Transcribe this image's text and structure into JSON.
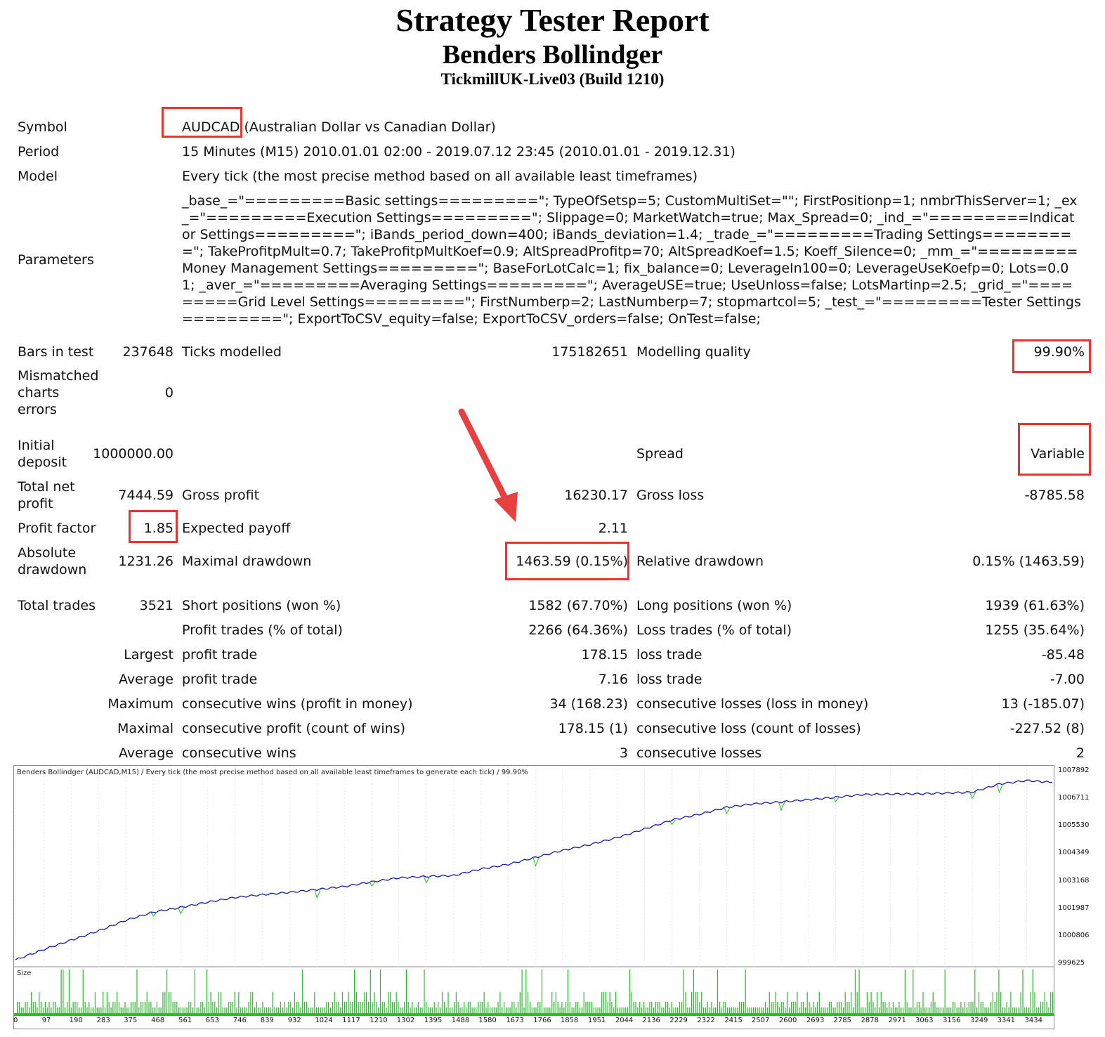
{
  "header": {
    "title": "Strategy Tester Report",
    "expert": "Benders Bollindger",
    "server": "TickmillUK-Live03 (Build 1210)"
  },
  "info": {
    "symbol_label": "Symbol",
    "symbol_code": "AUDCAD",
    "symbol_desc": " (Australian Dollar vs Canadian Dollar)",
    "period_label": "Period",
    "period_value": "15 Minutes (M15) 2010.01.01 02:00 - 2019.07.12 23:45 (2010.01.01 - 2019.12.31)",
    "model_label": "Model",
    "model_value": "Every tick (the most precise method based on all available least timeframes)",
    "parameters_label": "Parameters",
    "parameters_value": "_base_=\"=========Basic settings=========\"; TypeOfSetsp=5; CustomMultiSet=\"\"; FirstPositionp=1; nmbrThisServer=1; _ex_=\"=========Execution Settings=========\"; Slippage=0; MarketWatch=true; Max_Spread=0; _ind_=\"=========Indicator Settings=========\"; iBands_period_down=400; iBands_deviation=1.4; _trade_=\"=========Trading Settings=========\"; TakeProfitpMult=0.7; TakeProfitpMultKoef=0.9; AltSpreadProfitp=70; AltSpreadKoef=1.5; Koeff_Silence=0; _mm_=\"=========Money Management Settings=========\"; BaseForLotCalc=1; fix_balance=0; LeverageIn100=0; LeverageUseKoefp=0; Lots=0.01; _aver_=\"=========Averaging Settings=========\"; AverageUSE=true; UseUnloss=false; LotsMartinp=2.5; _grid_=\"=========Grid Level Settings=========\"; FirstNumberp=2; LastNumberp=7; stopmartcol=5; _test_=\"=========Tester Settings=========\"; ExportToCSV_equity=false; ExportToCSV_orders=false; OnTest=false;"
  },
  "stats": {
    "bars_label": "Bars in test",
    "bars_value": "237648",
    "ticks_label": "Ticks modelled",
    "ticks_value": "175182651",
    "quality_label": "Modelling quality",
    "quality_value": "99.90%",
    "mismatch_label_1": "Mismatched",
    "mismatch_label_2": "charts",
    "mismatch_label_3": "errors",
    "mismatch_value": "0",
    "deposit_label_1": "Initial",
    "deposit_label_2": "deposit",
    "deposit_value": "1000000.00",
    "spread_label": "Spread",
    "spread_value": "Variable",
    "netprofit_label_1": "Total net",
    "netprofit_label_2": "profit",
    "netprofit_value": "7444.59",
    "grossprofit_label": "Gross profit",
    "grossprofit_value": "16230.17",
    "grossloss_label": "Gross loss",
    "grossloss_value": "-8785.58",
    "pf_label": "Profit factor",
    "pf_value": "1.85",
    "payoff_label": "Expected payoff",
    "payoff_value": "2.11",
    "absdd_label_1": "Absolute",
    "absdd_label_2": "drawdown",
    "absdd_value": "1231.26",
    "maxdd_label": "Maximal drawdown",
    "maxdd_value": "1463.59 (0.15%)",
    "reldd_label": "Relative drawdown",
    "reldd_value": "0.15% (1463.59)",
    "trades_label": "Total trades",
    "trades_value": "3521",
    "short_label": "Short positions (won %)",
    "short_value": "1582 (67.70%)",
    "long_label": "Long positions (won %)",
    "long_value": "1939 (61.63%)",
    "ptrades_label": "Profit trades (% of total)",
    "ptrades_value": "2266 (64.36%)",
    "ltrades_label": "Loss trades (% of total)",
    "ltrades_value": "1255 (35.64%)",
    "largest_label": "Largest",
    "largest_p_label": "profit trade",
    "largest_p_value": "178.15",
    "largest_l_label": "loss trade",
    "largest_l_value": "-85.48",
    "average_label": "Average",
    "average_p_label": "profit trade",
    "average_p_value": "7.16",
    "average_l_label": "loss trade",
    "average_l_value": "-7.00",
    "maximum_label": "Maximum",
    "maximum_w_label": "consecutive wins (profit in money)",
    "maximum_w_value": "34 (168.23)",
    "maximum_l_label": "consecutive losses (loss in money)",
    "maximum_l_value": "13 (-185.07)",
    "maximal_label": "Maximal",
    "maximal_p_label": "consecutive profit (count of wins)",
    "maximal_p_value": "178.15 (1)",
    "maximal_l_label": "consecutive loss (count of losses)",
    "maximal_l_value": "-227.52 (8)",
    "avgc_label": "Average",
    "avgc_w_label": "consecutive wins",
    "avgc_w_value": "3",
    "avgc_l_label": "consecutive losses",
    "avgc_l_value": "2"
  },
  "chart_data": {
    "type": "line",
    "title": "Benders Bollindger (AUDCAD,M15) / Every tick (the most precise method based on all available least timeframes to generate each tick) / 99.90%",
    "size_label": "Size",
    "y_ticks": [
      "1007892",
      "1006711",
      "1005530",
      "1004349",
      "1003168",
      "1001987",
      "1000806",
      "999625"
    ],
    "ylim": [
      999625,
      1007892
    ],
    "x_ticks": [
      "0",
      "97",
      "190",
      "283",
      "375",
      "468",
      "561",
      "653",
      "746",
      "839",
      "932",
      "1024",
      "1117",
      "1210",
      "1302",
      "1395",
      "1488",
      "1580",
      "1673",
      "1766",
      "1858",
      "1951",
      "2044",
      "2136",
      "2229",
      "2322",
      "2415",
      "2507",
      "2600",
      "2693",
      "2785",
      "2878",
      "2971",
      "3063",
      "3156",
      "3249",
      "3341",
      "3434"
    ],
    "xlim": [
      0,
      3521
    ],
    "series": [
      {
        "name": "",
        "color": "#1a1aa0",
        "x": [
          0,
          97,
          190,
          283,
          375,
          468,
          561,
          653,
          746,
          839,
          932,
          1024,
          1117,
          1210,
          1302,
          1395,
          1488,
          1580,
          1673,
          1766,
          1858,
          1951,
          2044,
          2136,
          2229,
          2322,
          2415,
          2507,
          2600,
          2693,
          2785,
          2878,
          2971,
          3063,
          3156,
          3249,
          3341,
          3434,
          3521
        ],
        "y": [
          999800,
          1000250,
          1000650,
          1001050,
          1001500,
          1001850,
          1002050,
          1002280,
          1002480,
          1002600,
          1002700,
          1002820,
          1002950,
          1003150,
          1003320,
          1003380,
          1003420,
          1003700,
          1003900,
          1004200,
          1004500,
          1004750,
          1005050,
          1005420,
          1005800,
          1006050,
          1006350,
          1006500,
          1006580,
          1006680,
          1006780,
          1006900,
          1006920,
          1006930,
          1006960,
          1007000,
          1007350,
          1007500,
          1007420
        ]
      }
    ],
    "colors": {
      "balance": "#1a1aa0",
      "equity": "#22c322",
      "size": "#22c322",
      "highlight": "#e8332f",
      "arrow": "#e84040"
    }
  }
}
